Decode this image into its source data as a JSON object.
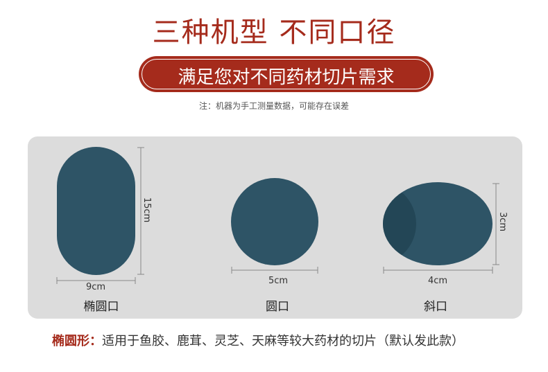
{
  "header": {
    "title": "三种机型 不同口径",
    "subtitle": "满足您对不同药材切片需求",
    "note": "注：机器为手工测量数据，可能存在误差"
  },
  "shapes": [
    {
      "label": "椭圆口",
      "width": "9cm",
      "height": "15cm"
    },
    {
      "label": "圆口",
      "width": "5cm"
    },
    {
      "label": "斜口",
      "width": "4cm",
      "height": "3cm"
    }
  ],
  "footer": {
    "term": "椭圆形：",
    "text": "适用于鱼胶、鹿茸、灵芝、天麻等较大药材的切片（默认发此款）"
  }
}
